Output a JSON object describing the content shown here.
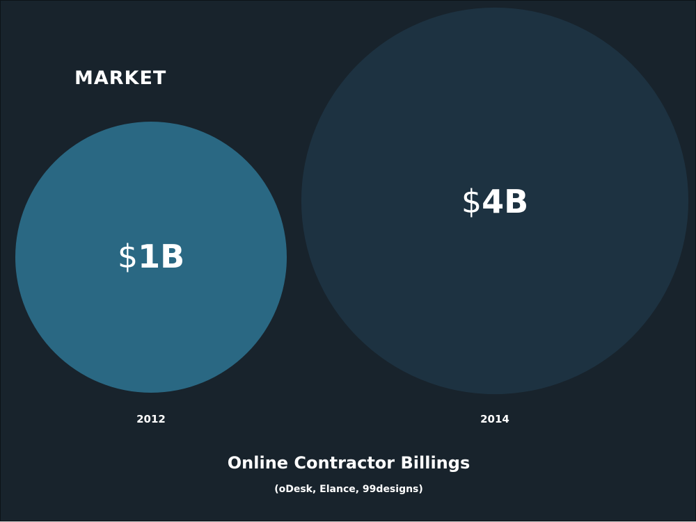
{
  "heading": "MARKET",
  "chart_data": {
    "type": "bubble",
    "title": "Online Contractor Billings",
    "subtitle": "(oDesk, Elance, 99designs)",
    "categories": [
      "2012",
      "2014"
    ],
    "values": [
      1,
      4
    ],
    "value_labels": [
      {
        "currency": "$",
        "amount": "1B"
      },
      {
        "currency": "$",
        "amount": "4B"
      }
    ],
    "colors": [
      "#2a6883",
      "#1d3241"
    ],
    "grid": false,
    "legend": "none"
  }
}
